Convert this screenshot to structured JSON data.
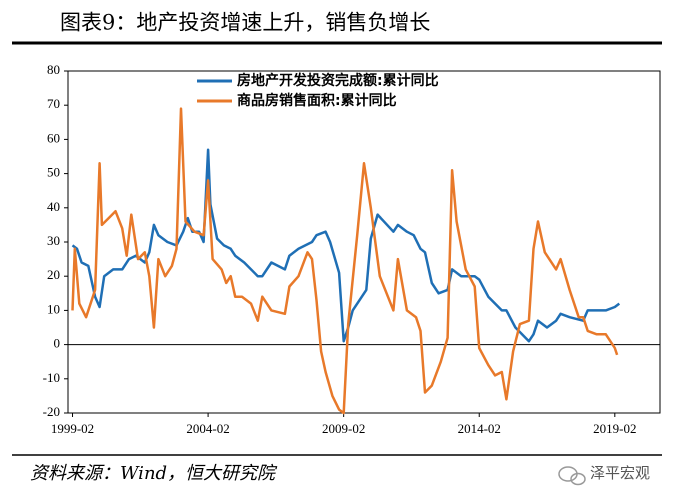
{
  "chart_data": {
    "type": "line",
    "title": "图表9：地产投资增速上升，销售负增长",
    "source": "资料来源：Wind，恒大研究院",
    "watermark": "泽平宏观",
    "xlim": [
      "1998-12",
      "2020-10"
    ],
    "xticks": [
      "1999-02",
      "2004-02",
      "2009-02",
      "2014-02",
      "2019-02"
    ],
    "ylim": [
      -20,
      80
    ],
    "yticks": [
      -20,
      -10,
      0,
      10,
      20,
      30,
      40,
      50,
      60,
      70,
      80
    ],
    "grid": false,
    "legend": "top",
    "series": [
      {
        "name": "房地产开发投资完成额:累计同比",
        "color": "#1f6fb5",
        "x": [
          "1999-02",
          "1999-04",
          "1999-06",
          "1999-09",
          "1999-12",
          "2000-02",
          "2000-04",
          "2000-08",
          "2000-12",
          "2001-03",
          "2001-06",
          "2001-10",
          "2001-12",
          "2002-02",
          "2002-04",
          "2002-08",
          "2002-12",
          "2003-03",
          "2003-05",
          "2003-07",
          "2003-10",
          "2003-12",
          "2004-02",
          "2004-03",
          "2004-06",
          "2004-09",
          "2004-12",
          "2005-02",
          "2005-06",
          "2005-12",
          "2006-02",
          "2006-06",
          "2006-12",
          "2007-02",
          "2007-06",
          "2007-12",
          "2008-02",
          "2008-06",
          "2008-08",
          "2008-12",
          "2009-02",
          "2009-04",
          "2009-06",
          "2009-12",
          "2010-02",
          "2010-05",
          "2010-12",
          "2011-02",
          "2011-06",
          "2011-09",
          "2011-12",
          "2012-02",
          "2012-05",
          "2012-08",
          "2012-12",
          "2013-02",
          "2013-06",
          "2013-12",
          "2014-02",
          "2014-06",
          "2014-12",
          "2015-02",
          "2015-06",
          "2015-12",
          "2016-02",
          "2016-04",
          "2016-08",
          "2016-12",
          "2017-02",
          "2017-06",
          "2017-12",
          "2018-02",
          "2018-06",
          "2018-10",
          "2019-02",
          "2019-04"
        ],
        "values": [
          29,
          28,
          24,
          23,
          14,
          11,
          20,
          22,
          22,
          25,
          26,
          24,
          27,
          35,
          32,
          30,
          29,
          33,
          37,
          33,
          33,
          30,
          57,
          41,
          31,
          29,
          28,
          26,
          24,
          20,
          20,
          24,
          22,
          26,
          28,
          30,
          32,
          33,
          30,
          21,
          1,
          5,
          10,
          16,
          31,
          38,
          33,
          35,
          33,
          32,
          28,
          27,
          18,
          15,
          16,
          22,
          20,
          20,
          19,
          14,
          10,
          10,
          5,
          1,
          3,
          7,
          5,
          7,
          9,
          8,
          7,
          10,
          10,
          10,
          11,
          12
        ]
      },
      {
        "name": "商品房销售面积:累计同比",
        "color": "#e8792a",
        "x": [
          "1999-02",
          "1999-03",
          "1999-05",
          "1999-08",
          "1999-12",
          "2000-02",
          "2000-03",
          "2000-06",
          "2000-09",
          "2000-12",
          "2001-02",
          "2001-04",
          "2001-07",
          "2001-10",
          "2001-12",
          "2002-02",
          "2002-04",
          "2002-07",
          "2002-10",
          "2002-12",
          "2003-02",
          "2003-04",
          "2003-08",
          "2003-12",
          "2004-02",
          "2004-04",
          "2004-08",
          "2004-10",
          "2004-12",
          "2005-02",
          "2005-05",
          "2005-09",
          "2005-12",
          "2006-02",
          "2006-06",
          "2006-12",
          "2007-02",
          "2007-06",
          "2007-10",
          "2007-12",
          "2008-02",
          "2008-04",
          "2008-06",
          "2008-09",
          "2008-12",
          "2009-02",
          "2009-04",
          "2009-08",
          "2009-11",
          "2010-02",
          "2010-06",
          "2010-12",
          "2011-02",
          "2011-06",
          "2011-10",
          "2011-12",
          "2012-02",
          "2012-05",
          "2012-09",
          "2012-12",
          "2013-02",
          "2013-04",
          "2013-08",
          "2013-12",
          "2014-02",
          "2014-06",
          "2014-09",
          "2014-12",
          "2015-02",
          "2015-05",
          "2015-08",
          "2015-12",
          "2016-02",
          "2016-04",
          "2016-07",
          "2016-12",
          "2017-02",
          "2017-06",
          "2017-10",
          "2017-12",
          "2018-02",
          "2018-06",
          "2018-10",
          "2019-02",
          "2019-03"
        ],
        "values": [
          10,
          28,
          12,
          8,
          16,
          53,
          35,
          37,
          39,
          34,
          26,
          38,
          25,
          27,
          20,
          5,
          25,
          20,
          23,
          28,
          69,
          36,
          33,
          32,
          48,
          25,
          22,
          18,
          20,
          14,
          14,
          12,
          7,
          14,
          10,
          9,
          17,
          20,
          27,
          25,
          13,
          -2,
          -8,
          -15,
          -19,
          -20,
          6,
          32,
          53,
          40,
          20,
          10,
          25,
          10,
          8,
          4,
          -14,
          -12,
          -5,
          2,
          51,
          36,
          22,
          17,
          -1,
          -6,
          -9,
          -8,
          -16,
          -2,
          6,
          7,
          28,
          36,
          27,
          22,
          25,
          16,
          8,
          8,
          4,
          3,
          3,
          -1,
          -3
        ]
      }
    ]
  }
}
